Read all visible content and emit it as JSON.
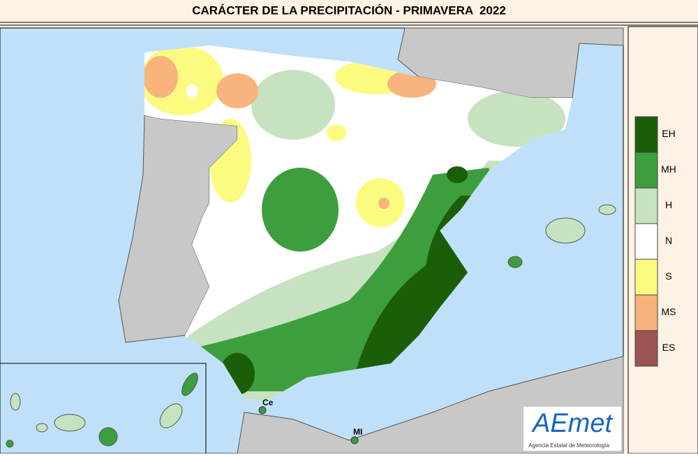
{
  "title": "CARÁCTER DE LA PRECIPITACIÓN - PRIMAVERA  2022",
  "legend": {
    "items": [
      {
        "label": "EH",
        "color": "#1a5e0a"
      },
      {
        "label": "MH",
        "color": "#3d9e3d"
      },
      {
        "label": "H",
        "color": "#c7e2c0"
      },
      {
        "label": "N",
        "color": "#ffffff"
      },
      {
        "label": "S",
        "color": "#fbfb80"
      },
      {
        "label": "MS",
        "color": "#f8b47c"
      },
      {
        "label": "ES",
        "color": "#9b5252"
      }
    ]
  },
  "places": [
    {
      "label": "Ce"
    },
    {
      "label": "MI"
    }
  ],
  "logo": {
    "name": "AEmet",
    "subtitle": "Agencia Estatal de Meteorología"
  }
}
